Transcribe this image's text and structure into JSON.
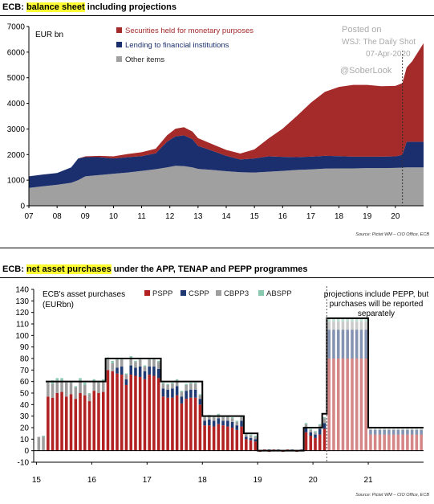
{
  "chart_data": [
    {
      "type": "area",
      "title_prefix": "ECB:",
      "title_highlight": "balance sheet",
      "title_suffix": "including projections",
      "ylabel": "EUR bn",
      "ylim": [
        0,
        7000
      ],
      "yticks": [
        0,
        1000,
        2000,
        3000,
        4000,
        5000,
        6000,
        7000
      ],
      "xticks": [
        "07",
        "08",
        "09",
        "10",
        "11",
        "12",
        "13",
        "14",
        "15",
        "16",
        "17",
        "18",
        "19",
        "20"
      ],
      "x_unit": "year (2007–2021)",
      "projection_start": 2020.25,
      "stack_order": [
        "Other items",
        "Lending to financial institutions",
        "Securities held for monetary purposes"
      ],
      "legend": [
        {
          "name": "Securities held for monetary purposes",
          "color": "#a52a2a"
        },
        {
          "name": "Lending to financial institutions",
          "color": "#1b2f6e"
        },
        {
          "name": "Other items",
          "color": "#a0a0a0"
        }
      ],
      "x": [
        2007.0,
        2007.5,
        2008.0,
        2008.5,
        2008.75,
        2009.0,
        2009.5,
        2010.0,
        2010.5,
        2011.0,
        2011.5,
        2011.9,
        2012.2,
        2012.5,
        2012.8,
        2013.0,
        2013.5,
        2014.0,
        2014.5,
        2015.0,
        2015.5,
        2016.0,
        2016.5,
        2017.0,
        2017.5,
        2018.0,
        2018.5,
        2019.0,
        2019.5,
        2020.0,
        2020.25,
        2020.4,
        2020.6,
        2021.0
      ],
      "series": [
        {
          "name": "Other items",
          "values": [
            700,
            760,
            820,
            900,
            1000,
            1150,
            1200,
            1250,
            1300,
            1360,
            1430,
            1500,
            1560,
            1550,
            1500,
            1440,
            1400,
            1350,
            1310,
            1300,
            1330,
            1360,
            1400,
            1420,
            1450,
            1460,
            1460,
            1470,
            1470,
            1480,
            1490,
            1500,
            1500,
            1500
          ]
        },
        {
          "name": "Lending to financial institutions",
          "values": [
            450,
            460,
            460,
            600,
            850,
            750,
            700,
            600,
            600,
            580,
            620,
            1000,
            1150,
            1200,
            1100,
            900,
            750,
            600,
            500,
            550,
            600,
            550,
            500,
            500,
            500,
            480,
            460,
            450,
            450,
            450,
            500,
            1000,
            1000,
            1000
          ]
        },
        {
          "name": "Securities held for monetary purposes",
          "values": [
            0,
            0,
            0,
            0,
            0,
            30,
            50,
            80,
            120,
            150,
            180,
            250,
            300,
            320,
            300,
            300,
            260,
            230,
            230,
            350,
            700,
            1100,
            1600,
            2100,
            2500,
            2700,
            2800,
            2800,
            2750,
            2750,
            2800,
            2900,
            3150,
            3850
          ]
        }
      ],
      "annotations": [
        "Posted on",
        "WSJ: The Daily Shot",
        "07-Apr-2020",
        "@SoberLook"
      ],
      "source": "Source: Pictet WM – CIO Office, ECB"
    },
    {
      "type": "bar",
      "title_prefix": "ECB:",
      "title_highlight": "net asset purchases",
      "title_suffix": "under the APP, TENAP and PEPP programmes",
      "ylabel": "ECB's asset purchases (EURbn)",
      "ylim": [
        -10,
        140
      ],
      "yticks": [
        -10,
        0,
        10,
        20,
        30,
        40,
        50,
        60,
        70,
        80,
        90,
        100,
        110,
        120,
        130,
        140
      ],
      "xticks": [
        "15",
        "16",
        "17",
        "18",
        "19",
        "20",
        "21"
      ],
      "x_unit": "year (2015–2021), monthly",
      "projection_start": 2020.25,
      "legend": [
        {
          "name": "PSPP",
          "color": "#b22222"
        },
        {
          "name": "CSPP",
          "color": "#1f3a73"
        },
        {
          "name": "CBPP3",
          "color": "#9e9e9e"
        },
        {
          "name": "ABSPP",
          "color": "#88c9b0"
        }
      ],
      "annotation": "projections include PEPP, but purchases will be reported separately",
      "months": [
        {
          "x": 2015.0,
          "PSPP": 0,
          "CSPP": 0,
          "CBPP3": 12,
          "ABSPP": 0
        },
        {
          "x": 2015.083,
          "PSPP": 0,
          "CSPP": 0,
          "CBPP3": 12,
          "ABSPP": 1
        },
        {
          "x": 2015.167,
          "PSPP": 47,
          "CSPP": 0,
          "CBPP3": 12,
          "ABSPP": 1
        },
        {
          "x": 2015.25,
          "PSPP": 46,
          "CSPP": 0,
          "CBPP3": 12,
          "ABSPP": 3
        },
        {
          "x": 2015.333,
          "PSPP": 50,
          "CSPP": 0,
          "CBPP3": 11,
          "ABSPP": 2
        },
        {
          "x": 2015.417,
          "PSPP": 51,
          "CSPP": 0,
          "CBPP3": 10,
          "ABSPP": 2
        },
        {
          "x": 2015.5,
          "PSPP": 47,
          "CSPP": 0,
          "CBPP3": 12,
          "ABSPP": 1
        },
        {
          "x": 2015.583,
          "PSPP": 49,
          "CSPP": 0,
          "CBPP3": 10,
          "ABSPP": 1
        },
        {
          "x": 2015.667,
          "PSPP": 45,
          "CSPP": 0,
          "CBPP3": 10,
          "ABSPP": 1
        },
        {
          "x": 2015.75,
          "PSPP": 50,
          "CSPP": 0,
          "CBPP3": 11,
          "ABSPP": 2
        },
        {
          "x": 2015.833,
          "PSPP": 48,
          "CSPP": 0,
          "CBPP3": 9,
          "ABSPP": 2
        },
        {
          "x": 2015.917,
          "PSPP": 43,
          "CSPP": 0,
          "CBPP3": 6,
          "ABSPP": 1
        },
        {
          "x": 2016.0,
          "PSPP": 52,
          "CSPP": 0,
          "CBPP3": 8,
          "ABSPP": 2
        },
        {
          "x": 2016.083,
          "PSPP": 50,
          "CSPP": 0,
          "CBPP3": 9,
          "ABSPP": 1
        },
        {
          "x": 2016.167,
          "PSPP": 51,
          "CSPP": 0,
          "CBPP3": 9,
          "ABSPP": 2
        },
        {
          "x": 2016.25,
          "PSPP": 70,
          "CSPP": 0,
          "CBPP3": 9,
          "ABSPP": 2
        },
        {
          "x": 2016.333,
          "PSPP": 69,
          "CSPP": 0,
          "CBPP3": 7,
          "ABSPP": 2
        },
        {
          "x": 2016.417,
          "PSPP": 67,
          "CSPP": 5,
          "CBPP3": 7,
          "ABSPP": 1
        },
        {
          "x": 2016.5,
          "PSPP": 66,
          "CSPP": 7,
          "CBPP3": 6,
          "ABSPP": 1
        },
        {
          "x": 2016.583,
          "PSPP": 57,
          "CSPP": 5,
          "CBPP3": 4,
          "ABSPP": 1
        },
        {
          "x": 2016.667,
          "PSPP": 66,
          "CSPP": 8,
          "CBPP3": 7,
          "ABSPP": 1
        },
        {
          "x": 2016.75,
          "PSPP": 65,
          "CSPP": 7,
          "CBPP3": 5,
          "ABSPP": 1
        },
        {
          "x": 2016.833,
          "PSPP": 64,
          "CSPP": 9,
          "CBPP3": 6,
          "ABSPP": 1
        },
        {
          "x": 2016.917,
          "PSPP": 62,
          "CSPP": 7,
          "CBPP3": 4,
          "ABSPP": 1
        },
        {
          "x": 2017.0,
          "PSPP": 66,
          "CSPP": 7,
          "CBPP3": 6,
          "ABSPP": 1
        },
        {
          "x": 2017.083,
          "PSPP": 65,
          "CSPP": 8,
          "CBPP3": 6,
          "ABSPP": 1
        },
        {
          "x": 2017.167,
          "PSPP": 63,
          "CSPP": 8,
          "CBPP3": 6,
          "ABSPP": 1
        },
        {
          "x": 2017.25,
          "PSPP": 47,
          "CSPP": 7,
          "CBPP3": 4,
          "ABSPP": 1
        },
        {
          "x": 2017.333,
          "PSPP": 46,
          "CSPP": 7,
          "CBPP3": 4,
          "ABSPP": 1
        },
        {
          "x": 2017.417,
          "PSPP": 46,
          "CSPP": 8,
          "CBPP3": 4,
          "ABSPP": 1
        },
        {
          "x": 2017.5,
          "PSPP": 48,
          "CSPP": 8,
          "CBPP3": 5,
          "ABSPP": 1
        },
        {
          "x": 2017.583,
          "PSPP": 41,
          "CSPP": 6,
          "CBPP3": 4,
          "ABSPP": 1
        },
        {
          "x": 2017.667,
          "PSPP": 45,
          "CSPP": 7,
          "CBPP3": 5,
          "ABSPP": 1
        },
        {
          "x": 2017.75,
          "PSPP": 46,
          "CSPP": 7,
          "CBPP3": 5,
          "ABSPP": 1
        },
        {
          "x": 2017.833,
          "PSPP": 46,
          "CSPP": 7,
          "CBPP3": 5,
          "ABSPP": 1
        },
        {
          "x": 2017.917,
          "PSPP": 40,
          "CSPP": 5,
          "CBPP3": 3,
          "ABSPP": 1
        },
        {
          "x": 2018.0,
          "PSPP": 22,
          "CSPP": 4,
          "CBPP3": 3,
          "ABSPP": 1
        },
        {
          "x": 2018.083,
          "PSPP": 22,
          "CSPP": 5,
          "CBPP3": 3,
          "ABSPP": 1
        },
        {
          "x": 2018.167,
          "PSPP": 21,
          "CSPP": 5,
          "CBPP3": 3,
          "ABSPP": 1
        },
        {
          "x": 2018.25,
          "PSPP": 23,
          "CSPP": 5,
          "CBPP3": 3,
          "ABSPP": 1
        },
        {
          "x": 2018.333,
          "PSPP": 22,
          "CSPP": 4,
          "CBPP3": 3,
          "ABSPP": 1
        },
        {
          "x": 2018.417,
          "PSPP": 21,
          "CSPP": 5,
          "CBPP3": 3,
          "ABSPP": 1
        },
        {
          "x": 2018.5,
          "PSPP": 20,
          "CSPP": 5,
          "CBPP3": 3,
          "ABSPP": 1
        },
        {
          "x": 2018.583,
          "PSPP": 18,
          "CSPP": 4,
          "CBPP3": 3,
          "ABSPP": 1
        },
        {
          "x": 2018.667,
          "PSPP": 21,
          "CSPP": 5,
          "CBPP3": 3,
          "ABSPP": 1
        },
        {
          "x": 2018.75,
          "PSPP": 10,
          "CSPP": 2,
          "CBPP3": 2,
          "ABSPP": 1
        },
        {
          "x": 2018.833,
          "PSPP": 9,
          "CSPP": 2,
          "CBPP3": 2,
          "ABSPP": 1
        },
        {
          "x": 2018.917,
          "PSPP": 8,
          "CSPP": 2,
          "CBPP3": 2,
          "ABSPP": 1
        },
        {
          "x": 2019.0,
          "PSPP": -1,
          "CSPP": 0,
          "CBPP3": 0,
          "ABSPP": 0
        },
        {
          "x": 2019.083,
          "PSPP": 1,
          "CSPP": 0,
          "CBPP3": 0,
          "ABSPP": 0
        },
        {
          "x": 2019.167,
          "PSPP": -1,
          "CSPP": 1,
          "CBPP3": 0,
          "ABSPP": 0
        },
        {
          "x": 2019.25,
          "PSPP": 1,
          "CSPP": 0,
          "CBPP3": 0,
          "ABSPP": 0
        },
        {
          "x": 2019.333,
          "PSPP": 0,
          "CSPP": 1,
          "CBPP3": 0,
          "ABSPP": 0
        },
        {
          "x": 2019.417,
          "PSPP": -1,
          "CSPP": 0,
          "CBPP3": 0,
          "ABSPP": 0
        },
        {
          "x": 2019.5,
          "PSPP": 1,
          "CSPP": 0,
          "CBPP3": 0,
          "ABSPP": 0
        },
        {
          "x": 2019.583,
          "PSPP": 0,
          "CSPP": 1,
          "CBPP3": 0,
          "ABSPP": 0
        },
        {
          "x": 2019.667,
          "PSPP": -1,
          "CSPP": 0,
          "CBPP3": 0,
          "ABSPP": 0
        },
        {
          "x": 2019.75,
          "PSPP": 0,
          "CSPP": 1,
          "CBPP3": 0,
          "ABSPP": 0
        },
        {
          "x": 2019.833,
          "PSPP": 16,
          "CSPP": 4,
          "CBPP3": 3,
          "ABSPP": 1
        },
        {
          "x": 2019.917,
          "PSPP": 13,
          "CSPP": 3,
          "CBPP3": 2,
          "ABSPP": 1
        },
        {
          "x": 2020.0,
          "PSPP": 11,
          "CSPP": 3,
          "CBPP3": 2,
          "ABSPP": 1
        },
        {
          "x": 2020.083,
          "PSPP": 14,
          "CSPP": 5,
          "CBPP3": 3,
          "ABSPP": 1
        },
        {
          "x": 2020.167,
          "PSPP": 19,
          "CSPP": 5,
          "CBPP3": 4,
          "ABSPP": 1
        },
        {
          "x": 2020.25,
          "PSPP": 80,
          "CSPP": 25,
          "CBPP3": 7,
          "ABSPP": 3
        },
        {
          "x": 2020.333,
          "PSPP": 80,
          "CSPP": 25,
          "CBPP3": 7,
          "ABSPP": 3
        },
        {
          "x": 2020.417,
          "PSPP": 80,
          "CSPP": 25,
          "CBPP3": 7,
          "ABSPP": 3
        },
        {
          "x": 2020.5,
          "PSPP": 80,
          "CSPP": 25,
          "CBPP3": 7,
          "ABSPP": 3
        },
        {
          "x": 2020.583,
          "PSPP": 80,
          "CSPP": 25,
          "CBPP3": 7,
          "ABSPP": 3
        },
        {
          "x": 2020.667,
          "PSPP": 80,
          "CSPP": 25,
          "CBPP3": 7,
          "ABSPP": 3
        },
        {
          "x": 2020.75,
          "PSPP": 80,
          "CSPP": 25,
          "CBPP3": 7,
          "ABSPP": 3
        },
        {
          "x": 2020.833,
          "PSPP": 80,
          "CSPP": 25,
          "CBPP3": 7,
          "ABSPP": 3
        },
        {
          "x": 2020.917,
          "PSPP": 80,
          "CSPP": 25,
          "CBPP3": 7,
          "ABSPP": 3
        },
        {
          "x": 2021.0,
          "PSPP": 14,
          "CSPP": 4,
          "CBPP3": 1,
          "ABSPP": 1
        },
        {
          "x": 2021.083,
          "PSPP": 14,
          "CSPP": 4,
          "CBPP3": 1,
          "ABSPP": 1
        },
        {
          "x": 2021.167,
          "PSPP": 14,
          "CSPP": 4,
          "CBPP3": 1,
          "ABSPP": 1
        },
        {
          "x": 2021.25,
          "PSPP": 14,
          "CSPP": 4,
          "CBPP3": 1,
          "ABSPP": 1
        },
        {
          "x": 2021.333,
          "PSPP": 14,
          "CSPP": 4,
          "CBPP3": 1,
          "ABSPP": 1
        },
        {
          "x": 2021.417,
          "PSPP": 14,
          "CSPP": 4,
          "CBPP3": 1,
          "ABSPP": 1
        },
        {
          "x": 2021.5,
          "PSPP": 14,
          "CSPP": 4,
          "CBPP3": 1,
          "ABSPP": 1
        },
        {
          "x": 2021.583,
          "PSPP": 14,
          "CSPP": 4,
          "CBPP3": 1,
          "ABSPP": 1
        },
        {
          "x": 2021.667,
          "PSPP": 14,
          "CSPP": 4,
          "CBPP3": 1,
          "ABSPP": 1
        },
        {
          "x": 2021.75,
          "PSPP": 14,
          "CSPP": 4,
          "CBPP3": 1,
          "ABSPP": 1
        },
        {
          "x": 2021.833,
          "PSPP": 14,
          "CSPP": 4,
          "CBPP3": 1,
          "ABSPP": 1
        },
        {
          "x": 2021.917,
          "PSPP": 14,
          "CSPP": 4,
          "CBPP3": 1,
          "ABSPP": 1
        }
      ],
      "target_line": [
        {
          "from": 2015.167,
          "to": 2016.25,
          "value": 60
        },
        {
          "from": 2016.25,
          "to": 2017.25,
          "value": 80
        },
        {
          "from": 2017.25,
          "to": 2018.0,
          "value": 60
        },
        {
          "from": 2018.0,
          "to": 2018.75,
          "value": 30
        },
        {
          "from": 2018.75,
          "to": 2019.0,
          "value": 15
        },
        {
          "from": 2019.0,
          "to": 2019.833,
          "value": 0
        },
        {
          "from": 2019.833,
          "to": 2020.167,
          "value": 20
        },
        {
          "from": 2020.167,
          "to": 2020.25,
          "value": 32
        },
        {
          "from": 2020.25,
          "to": 2021.0,
          "value": 115
        },
        {
          "from": 2021.0,
          "to": 2022.0,
          "value": 20
        }
      ],
      "source": "Source: Pictet WM – CIO Office, ECB"
    }
  ]
}
